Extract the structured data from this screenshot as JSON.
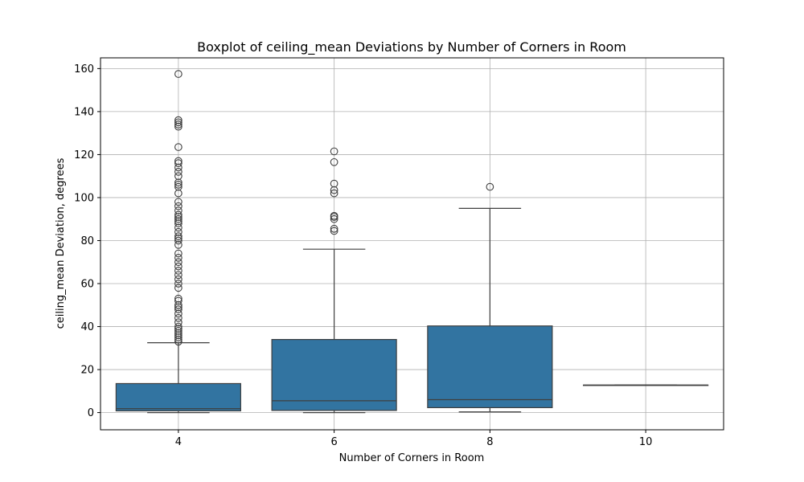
{
  "chart_data": {
    "type": "box",
    "title": "Boxplot of ceiling_mean Deviations by Number of Corners in Room",
    "xlabel": "Number of Corners in Room",
    "ylabel": "ceiling_mean Deviation, degrees",
    "ylim": [
      -8,
      165
    ],
    "yticks": [
      0,
      20,
      40,
      60,
      80,
      100,
      120,
      140,
      160
    ],
    "grid": true,
    "box_color": "#3274a1",
    "line_color": "#3f3f3f",
    "categories": [
      "4",
      "6",
      "8",
      "10"
    ],
    "boxes": [
      {
        "category": "4",
        "whisker_low": 0,
        "q1": 0.8,
        "median": 1.8,
        "q3": 13.5,
        "whisker_high": 32.5,
        "outliers": [
          33,
          34,
          35,
          36,
          37,
          38,
          39,
          40,
          42,
          44,
          46,
          48,
          49,
          50,
          52,
          53,
          58,
          60,
          62,
          64,
          66,
          68,
          70,
          72,
          74,
          78,
          80,
          81,
          82,
          84,
          86,
          88,
          89,
          90,
          91,
          92,
          94,
          96,
          98,
          102,
          105,
          106,
          107,
          110,
          112,
          114,
          116,
          117,
          123.5,
          133,
          134,
          135,
          136,
          157.5
        ]
      },
      {
        "category": "6",
        "whisker_low": 0,
        "q1": 1,
        "median": 5.5,
        "q3": 34,
        "whisker_high": 76,
        "outliers": [
          84.5,
          85.5,
          90,
          91,
          91.5,
          102,
          103.5,
          106.5,
          116.5,
          121.5
        ]
      },
      {
        "category": "8",
        "whisker_low": 0.3,
        "q1": 2.3,
        "median": 6,
        "q3": 40.3,
        "whisker_high": 95,
        "outliers": [
          105
        ]
      },
      {
        "category": "10",
        "whisker_low": 12.8,
        "q1": 12.8,
        "median": 12.8,
        "q3": 12.8,
        "whisker_high": 12.8,
        "outliers": []
      }
    ]
  }
}
